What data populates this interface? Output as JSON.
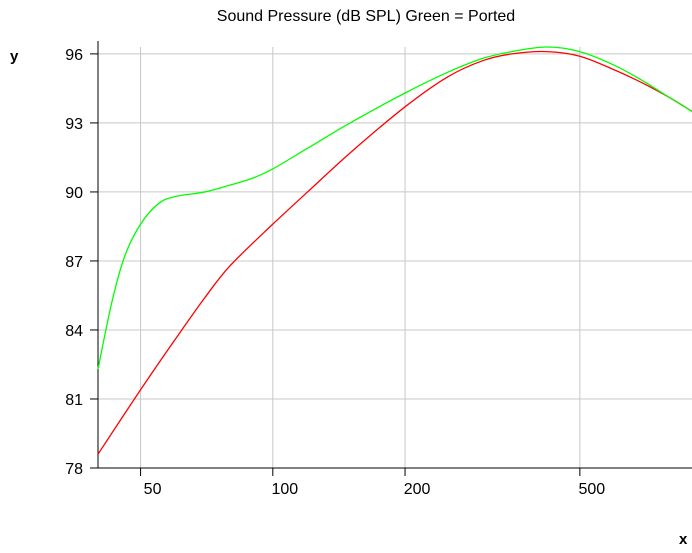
{
  "chart_data": {
    "type": "line",
    "title": "Sound Pressure (dB SPL) Green = Ported",
    "xlabel": "x",
    "ylabel": "y",
    "x_scale": "log",
    "xlim": [
      40,
      900
    ],
    "ylim": [
      78,
      96.3
    ],
    "grid": true,
    "x_ticks": [
      50,
      100,
      200,
      500
    ],
    "y_ticks": [
      78,
      81,
      84,
      87,
      90,
      93,
      96
    ],
    "series": [
      {
        "color": "#ff0000",
        "x": [
          40,
          50,
          60,
          70,
          80,
          100,
          120,
          150,
          200,
          250,
          300,
          350,
          420,
          500,
          600,
          700,
          800,
          900
        ],
        "y": [
          78.6,
          81.4,
          83.6,
          85.4,
          86.8,
          88.6,
          90.0,
          91.7,
          93.7,
          95.0,
          95.7,
          96.0,
          96.1,
          95.9,
          95.3,
          94.7,
          94.1,
          93.5
        ]
      },
      {
        "color": "#00ff00",
        "x": [
          40,
          43,
          46,
          50,
          55,
          60,
          70,
          80,
          90,
          100,
          120,
          150,
          200,
          250,
          300,
          350,
          420,
          500,
          600,
          700,
          800,
          900
        ],
        "y": [
          82.3,
          85.2,
          87.2,
          88.6,
          89.5,
          89.8,
          90.0,
          90.3,
          90.6,
          91.0,
          91.9,
          93.0,
          94.3,
          95.2,
          95.8,
          96.1,
          96.3,
          96.1,
          95.5,
          94.8,
          94.1,
          93.5
        ]
      }
    ]
  }
}
